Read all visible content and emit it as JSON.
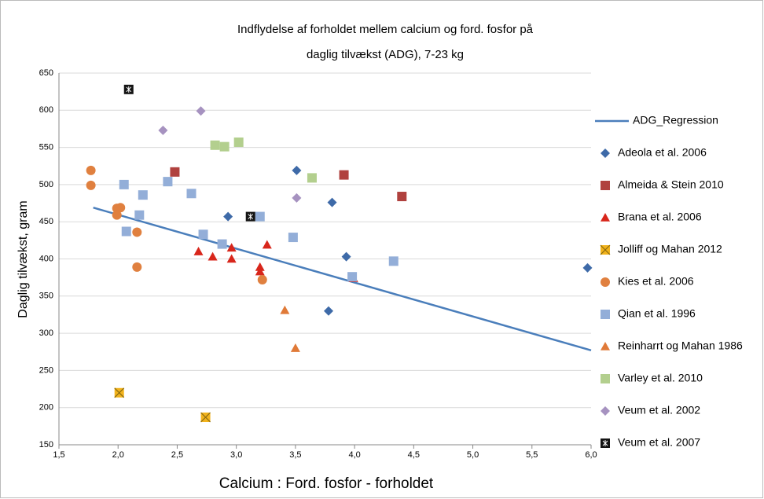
{
  "chart_data": {
    "type": "scatter",
    "title": [
      "Indflydelse af forholdet mellem calcium og ford. fosfor på",
      "daglig tilvækst (ADG), 7-23 kg"
    ],
    "xlabel": "Calcium : Ford. fosfor - forholdet",
    "ylabel": "Daglig tilvækst, gram",
    "xlim": [
      1.5,
      6.0
    ],
    "xticks": [
      {
        "value": 1.5,
        "label": "1,5"
      },
      {
        "value": 2.0,
        "label": "2,0"
      },
      {
        "value": 2.5,
        "label": "2,5"
      },
      {
        "value": 3.0,
        "label": "3,0"
      },
      {
        "value": 3.5,
        "label": "3,5"
      },
      {
        "value": 4.0,
        "label": "4,0"
      },
      {
        "value": 4.5,
        "label": "4,5"
      },
      {
        "value": 5.0,
        "label": "5,0"
      },
      {
        "value": 5.5,
        "label": "5,5"
      },
      {
        "value": 6.0,
        "label": "6,0"
      }
    ],
    "ylim": [
      150,
      650
    ],
    "yticks": [
      150,
      200,
      250,
      300,
      350,
      400,
      450,
      500,
      550,
      600,
      650
    ],
    "grid": true,
    "legend": "right",
    "series": [
      {
        "name": "ADG_Regression",
        "marker": "line",
        "color": "#4a7ebb",
        "x": [
          1.79,
          6.0
        ],
        "values": [
          469,
          277
        ]
      },
      {
        "name": "Adeola et al. 2006",
        "marker": "diamond",
        "color": "#3e6aa8",
        "x": [
          2.93,
          3.51,
          3.81,
          3.93,
          3.78,
          5.97
        ],
        "values": [
          457,
          519,
          476,
          403,
          330,
          388
        ]
      },
      {
        "name": "Almeida & Stein 2010",
        "marker": "square",
        "color": "#b0413e",
        "x": [
          2.48,
          3.91,
          4.4
        ],
        "values": [
          517,
          513,
          484
        ]
      },
      {
        "name": "Brana et al. 2006",
        "marker": "triangle",
        "color": "#d8261b",
        "x": [
          2.68,
          2.8,
          2.96,
          2.96,
          3.2,
          3.2,
          3.26,
          3.99
        ],
        "values": [
          410,
          403,
          415,
          400,
          389,
          383,
          419,
          374
        ]
      },
      {
        "name": "Jolliff og Mahan 2012",
        "marker": "x",
        "color": "#f2b31c",
        "x": [
          2.01,
          2.74
        ],
        "values": [
          220,
          187
        ]
      },
      {
        "name": "Kies et al. 2006",
        "marker": "circle",
        "color": "#e0803f",
        "x": [
          1.77,
          1.77,
          1.99,
          2.02,
          1.99,
          2.16,
          2.16,
          3.22
        ],
        "values": [
          519,
          499,
          468,
          469,
          459,
          436,
          389,
          372
        ]
      },
      {
        "name": "Qian et al. 1996",
        "marker": "square",
        "color": "#93aed8",
        "x": [
          2.05,
          2.21,
          2.42,
          2.62,
          2.07,
          2.18,
          2.72,
          2.88,
          3.2,
          3.48,
          3.98,
          4.33
        ],
        "values": [
          500,
          486,
          504,
          488,
          437,
          459,
          433,
          420,
          457,
          429,
          376,
          397
        ]
      },
      {
        "name": "Reinharrt og Mahan 1986",
        "marker": "triangle",
        "color": "#e07a38",
        "x": [
          3.41,
          3.5
        ],
        "values": [
          331,
          280
        ]
      },
      {
        "name": "Varley et al. 2010",
        "marker": "square",
        "color": "#b3cf8e",
        "x": [
          2.82,
          2.9,
          3.02,
          3.64
        ],
        "values": [
          553,
          551,
          557,
          509
        ]
      },
      {
        "name": "Veum et al. 2002",
        "marker": "diamond",
        "color": "#a692c0",
        "x": [
          2.38,
          2.7,
          3.51
        ],
        "values": [
          573,
          599,
          482
        ]
      },
      {
        "name": "Veum et al. 2007",
        "marker": "star",
        "color": "#141414",
        "x": [
          2.09,
          3.12
        ],
        "values": [
          628,
          457
        ]
      }
    ]
  }
}
